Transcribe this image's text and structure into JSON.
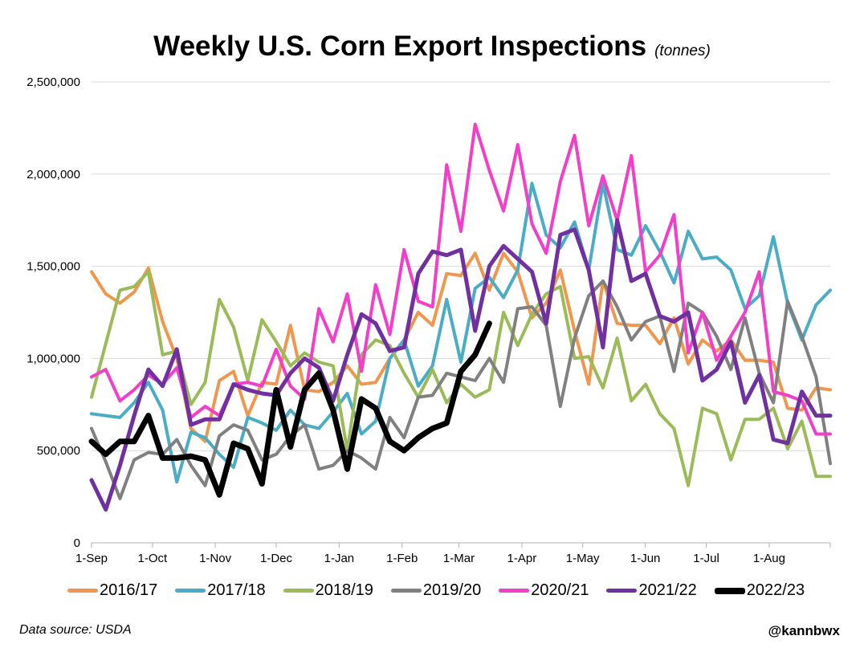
{
  "chart_data": {
    "type": "line",
    "title": "Weekly U.S. Corn Export Inspections",
    "units": "(tonnes)",
    "xlabel": "",
    "ylabel": "",
    "xlim": [
      0,
      52
    ],
    "ylim": [
      0,
      2500000
    ],
    "y_ticks": [
      0,
      500000,
      1000000,
      1500000,
      2000000,
      2500000
    ],
    "y_tick_labels": [
      "0",
      "500,000",
      "1,000,000",
      "1,500,000",
      "2,000,000",
      "2,500,000"
    ],
    "x_ticks": [
      0,
      4.29,
      8.71,
      13,
      17.43,
      21.86,
      25.86,
      30.29,
      34.57,
      38.98,
      43.27,
      47.7
    ],
    "x_tick_labels": [
      "1-Sep",
      "1-Oct",
      "1-Nov",
      "1-Dec",
      "1-Jan",
      "1-Feb",
      "1-Mar",
      "1-Apr",
      "1-May",
      "1-Jun",
      "1-Jul",
      "1-Aug"
    ],
    "grid": true,
    "legend_position": "bottom",
    "series": [
      {
        "name": "2016/17",
        "color": "#f0974f",
        "width": 4,
        "values": [
          1470000,
          1350000,
          1300000,
          1360000,
          1490000,
          1200000,
          1000000,
          620000,
          550000,
          880000,
          930000,
          690000,
          870000,
          860000,
          1180000,
          830000,
          820000,
          870000,
          960000,
          860000,
          870000,
          1000000,
          1100000,
          1250000,
          1180000,
          1460000,
          1450000,
          1570000,
          1370000,
          1570000,
          1470000,
          1220000,
          1300000,
          1480000,
          1150000,
          860000,
          1420000,
          1190000,
          1180000,
          1180000,
          1080000,
          1220000,
          970000,
          1100000,
          1040000,
          1100000,
          990000,
          990000,
          980000,
          730000,
          720000,
          840000,
          830000
        ]
      },
      {
        "name": "2017/18",
        "color": "#4bacc6",
        "width": 4,
        "values": [
          700000,
          690000,
          680000,
          760000,
          870000,
          720000,
          330000,
          600000,
          570000,
          480000,
          410000,
          680000,
          650000,
          610000,
          720000,
          640000,
          620000,
          710000,
          810000,
          590000,
          660000,
          1000000,
          1100000,
          850000,
          960000,
          1320000,
          980000,
          1380000,
          1440000,
          1330000,
          1480000,
          1950000,
          1670000,
          1600000,
          1740000,
          1480000,
          1950000,
          1590000,
          1560000,
          1720000,
          1580000,
          1410000,
          1690000,
          1540000,
          1550000,
          1480000,
          1270000,
          1340000,
          1660000,
          1300000,
          1100000,
          1290000,
          1370000
        ]
      },
      {
        "name": "2018/19",
        "color": "#9bbb59",
        "width": 4,
        "values": [
          790000,
          1080000,
          1370000,
          1390000,
          1470000,
          1020000,
          1040000,
          750000,
          870000,
          1320000,
          1170000,
          880000,
          1210000,
          1090000,
          960000,
          1030000,
          980000,
          960000,
          500000,
          1020000,
          1100000,
          1070000,
          920000,
          790000,
          940000,
          760000,
          860000,
          790000,
          830000,
          1250000,
          1070000,
          1240000,
          1350000,
          1390000,
          1000000,
          1010000,
          840000,
          1110000,
          770000,
          860000,
          700000,
          620000,
          310000,
          730000,
          700000,
          450000,
          670000,
          670000,
          730000,
          510000,
          660000,
          360000,
          360000
        ]
      },
      {
        "name": "2019/20",
        "color": "#808080",
        "width": 4,
        "values": [
          620000,
          440000,
          240000,
          450000,
          490000,
          480000,
          560000,
          420000,
          310000,
          580000,
          640000,
          610000,
          450000,
          480000,
          580000,
          640000,
          400000,
          420000,
          500000,
          460000,
          400000,
          680000,
          570000,
          790000,
          800000,
          920000,
          900000,
          880000,
          1000000,
          870000,
          1270000,
          1280000,
          1180000,
          740000,
          1110000,
          1340000,
          1420000,
          1280000,
          1100000,
          1200000,
          1230000,
          930000,
          1300000,
          1250000,
          1120000,
          940000,
          1220000,
          920000,
          760000,
          1310000,
          1120000,
          900000,
          430000
        ]
      },
      {
        "name": "2020/21",
        "color": "#f23ec8",
        "width": 4,
        "values": [
          900000,
          940000,
          770000,
          830000,
          910000,
          860000,
          950000,
          680000,
          740000,
          690000,
          860000,
          870000,
          850000,
          1050000,
          850000,
          780000,
          1270000,
          1090000,
          1350000,
          930000,
          1400000,
          1130000,
          1590000,
          1310000,
          1280000,
          2050000,
          1690000,
          2270000,
          2020000,
          1800000,
          2160000,
          1730000,
          1570000,
          1960000,
          2210000,
          1720000,
          1990000,
          1750000,
          2100000,
          1470000,
          1560000,
          1780000,
          1030000,
          1250000,
          990000,
          1120000,
          1250000,
          1470000,
          820000,
          800000,
          770000,
          590000,
          590000
        ]
      },
      {
        "name": "2021/22",
        "color": "#7030a0",
        "width": 5,
        "values": [
          340000,
          180000,
          420000,
          690000,
          940000,
          850000,
          1050000,
          640000,
          670000,
          670000,
          860000,
          830000,
          810000,
          800000,
          920000,
          1000000,
          950000,
          770000,
          1020000,
          1240000,
          1190000,
          1040000,
          1060000,
          1460000,
          1580000,
          1560000,
          1590000,
          1150000,
          1500000,
          1610000,
          1540000,
          1470000,
          1190000,
          1670000,
          1700000,
          1480000,
          1060000,
          1750000,
          1420000,
          1460000,
          1230000,
          1200000,
          1250000,
          880000,
          940000,
          1090000,
          760000,
          910000,
          560000,
          540000,
          820000,
          690000,
          690000
        ]
      },
      {
        "name": "2022/23",
        "color": "#000000",
        "width": 7,
        "values": [
          550000,
          480000,
          550000,
          550000,
          690000,
          460000,
          460000,
          470000,
          450000,
          260000,
          540000,
          510000,
          320000,
          830000,
          520000,
          830000,
          920000,
          720000,
          400000,
          780000,
          730000,
          550000,
          500000,
          570000,
          620000,
          650000,
          930000,
          1020000,
          1190000
        ]
      }
    ]
  },
  "legend_items": [
    "2016/17",
    "2017/18",
    "2018/19",
    "2019/20",
    "2020/21",
    "2021/22",
    "2022/23"
  ],
  "footer": {
    "source": "Data source: USDA",
    "handle": "@kannbwx"
  }
}
